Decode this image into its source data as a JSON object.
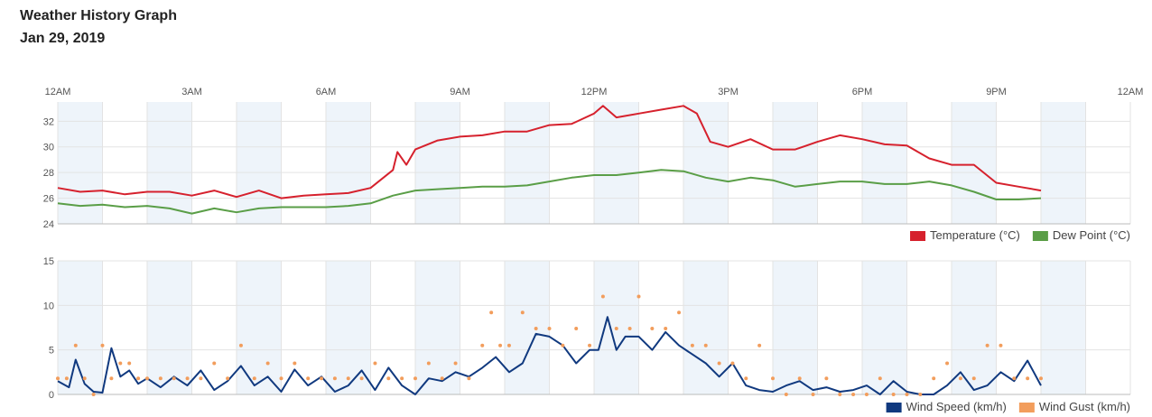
{
  "header": {
    "title": "Weather History Graph",
    "date": "Jan 29, 2019"
  },
  "colors": {
    "temperature": "#d6212d",
    "dew_point": "#5a9e47",
    "wind_speed": "#10397f",
    "wind_gust": "#f29d5c",
    "band": "#eef4fa",
    "grid": "#e3e3e3"
  },
  "chart_data": [
    {
      "type": "line",
      "x_ticks": [
        "12AM",
        "3AM",
        "6AM",
        "9AM",
        "12PM",
        "3PM",
        "6PM",
        "9PM",
        "12AM"
      ],
      "x_range_hours": [
        0,
        24
      ],
      "ylim": [
        24,
        33.5
      ],
      "y_ticks": [
        24,
        26,
        28,
        30,
        32
      ],
      "grid": true,
      "legend_position": "bottom-right",
      "series": [
        {
          "name": "Temperature (°C)",
          "key": "temperature",
          "x": [
            0,
            0.5,
            1,
            1.5,
            2,
            2.5,
            3,
            3.5,
            4,
            4.5,
            5,
            5.5,
            6,
            6.5,
            7,
            7.5,
            7.6,
            7.8,
            8,
            8.5,
            9,
            9.5,
            10,
            10.5,
            11,
            11.5,
            12,
            12.2,
            12.5,
            13,
            13.5,
            14,
            14.3,
            14.6,
            15,
            15.5,
            16,
            16.5,
            17,
            17.5,
            18,
            18.5,
            19,
            19.5,
            20,
            20.5,
            21,
            21.5,
            22
          ],
          "values": [
            26.8,
            26.5,
            26.6,
            26.3,
            26.5,
            26.5,
            26.2,
            26.6,
            26.1,
            26.6,
            26.0,
            26.2,
            26.3,
            26.4,
            26.8,
            28.2,
            29.6,
            28.6,
            29.8,
            30.5,
            30.8,
            30.9,
            31.2,
            31.2,
            31.7,
            31.8,
            32.6,
            33.2,
            32.3,
            32.6,
            32.9,
            33.2,
            32.6,
            30.4,
            30.0,
            30.6,
            29.8,
            29.8,
            30.4,
            30.9,
            30.6,
            30.2,
            30.1,
            29.1,
            28.6,
            28.6,
            27.2,
            26.9,
            26.6
          ]
        },
        {
          "name": "Dew Point (°C)",
          "key": "dew_point",
          "x": [
            0,
            0.5,
            1,
            1.5,
            2,
            2.5,
            3,
            3.5,
            4,
            4.5,
            5,
            5.5,
            6,
            6.5,
            7,
            7.5,
            8,
            8.5,
            9,
            9.5,
            10,
            10.5,
            11,
            11.5,
            12,
            12.5,
            13,
            13.5,
            14,
            14.5,
            15,
            15.5,
            16,
            16.5,
            17,
            17.5,
            18,
            18.5,
            19,
            19.5,
            20,
            20.5,
            21,
            21.5,
            22
          ],
          "values": [
            25.6,
            25.4,
            25.5,
            25.3,
            25.4,
            25.2,
            24.8,
            25.2,
            24.9,
            25.2,
            25.3,
            25.3,
            25.3,
            25.4,
            25.6,
            26.2,
            26.6,
            26.7,
            26.8,
            26.9,
            26.9,
            27.0,
            27.3,
            27.6,
            27.8,
            27.8,
            28.0,
            28.2,
            28.1,
            27.6,
            27.3,
            27.6,
            27.4,
            26.9,
            27.1,
            27.3,
            27.3,
            27.1,
            27.1,
            27.3,
            27.0,
            26.5,
            25.9,
            25.9,
            26.0
          ]
        }
      ]
    },
    {
      "type": "line",
      "x_ticks": [
        "12AM",
        "3AM",
        "6AM",
        "9AM",
        "12PM",
        "3PM",
        "6PM",
        "9PM",
        "12AM"
      ],
      "x_range_hours": [
        0,
        24
      ],
      "ylim": [
        0,
        15
      ],
      "y_ticks": [
        0,
        5,
        10,
        15
      ],
      "grid": true,
      "legend_position": "bottom-right",
      "series": [
        {
          "name": "Wind Speed (km/h)",
          "key": "wind_speed",
          "x": [
            0,
            0.25,
            0.4,
            0.6,
            0.8,
            1,
            1.2,
            1.4,
            1.6,
            1.8,
            2,
            2.3,
            2.6,
            2.9,
            3.2,
            3.5,
            3.8,
            4.1,
            4.4,
            4.7,
            5,
            5.3,
            5.6,
            5.9,
            6.2,
            6.5,
            6.8,
            7.1,
            7.4,
            7.7,
            8,
            8.3,
            8.6,
            8.9,
            9.2,
            9.5,
            9.8,
            10.1,
            10.4,
            10.7,
            11,
            11.3,
            11.6,
            11.9,
            12.1,
            12.3,
            12.5,
            12.7,
            13,
            13.3,
            13.6,
            13.9,
            14.2,
            14.5,
            14.8,
            15.1,
            15.4,
            15.7,
            16,
            16.3,
            16.6,
            16.9,
            17.2,
            17.5,
            17.8,
            18.1,
            18.4,
            18.7,
            19,
            19.3,
            19.6,
            19.9,
            20.2,
            20.5,
            20.8,
            21.1,
            21.4,
            21.7,
            22
          ],
          "values": [
            1.5,
            0.8,
            3.9,
            1.2,
            0.3,
            0.2,
            5.2,
            2.0,
            2.7,
            1.2,
            1.8,
            0.8,
            2.0,
            1.0,
            2.7,
            0.5,
            1.5,
            3.2,
            1.0,
            2.0,
            0.3,
            2.8,
            1.0,
            2.0,
            0.3,
            1.0,
            2.7,
            0.5,
            3.0,
            1.0,
            0.0,
            1.8,
            1.5,
            2.5,
            2.0,
            3.0,
            4.2,
            2.5,
            3.5,
            6.8,
            6.5,
            5.5,
            3.5,
            5.0,
            5.0,
            8.7,
            5.0,
            6.5,
            6.5,
            5.0,
            7.0,
            5.5,
            4.5,
            3.5,
            2.0,
            3.5,
            1.0,
            0.5,
            0.3,
            1.0,
            1.5,
            0.5,
            0.8,
            0.3,
            0.5,
            1.0,
            0.0,
            1.5,
            0.3,
            0.0,
            0.0,
            1.0,
            2.5,
            0.5,
            1.0,
            2.5,
            1.5,
            3.8,
            1.0
          ]
        },
        {
          "name": "Wind Gust (km/h)",
          "key": "wind_gust",
          "x": [
            0,
            0.2,
            0.4,
            0.6,
            0.8,
            1,
            1.2,
            1.4,
            1.6,
            1.8,
            2,
            2.3,
            2.6,
            2.9,
            3.2,
            3.5,
            3.8,
            4.1,
            4.4,
            4.7,
            5,
            5.3,
            5.6,
            5.9,
            6.2,
            6.5,
            6.8,
            7.1,
            7.4,
            7.7,
            8,
            8.3,
            8.6,
            8.9,
            9.2,
            9.5,
            9.7,
            9.9,
            10.1,
            10.4,
            10.7,
            11,
            11.3,
            11.6,
            11.9,
            12.2,
            12.5,
            12.8,
            13,
            13.3,
            13.6,
            13.9,
            14.2,
            14.5,
            14.8,
            15.1,
            15.4,
            15.7,
            16,
            16.3,
            16.6,
            16.9,
            17.2,
            17.5,
            17.8,
            18.1,
            18.4,
            18.7,
            19,
            19.3,
            19.6,
            19.9,
            20.2,
            20.5,
            20.8,
            21.1,
            21.4,
            21.7,
            22
          ],
          "values": [
            1.8,
            1.8,
            5.5,
            1.8,
            0.0,
            5.5,
            1.8,
            3.5,
            3.5,
            1.8,
            1.8,
            1.8,
            1.8,
            1.8,
            1.8,
            3.5,
            1.8,
            5.5,
            1.8,
            3.5,
            1.8,
            3.5,
            1.8,
            1.8,
            1.8,
            1.8,
            1.8,
            3.5,
            1.8,
            1.8,
            1.8,
            3.5,
            1.8,
            3.5,
            1.8,
            5.5,
            9.2,
            5.5,
            5.5,
            9.2,
            7.4,
            7.4,
            5.5,
            7.4,
            5.5,
            11.0,
            7.4,
            7.4,
            11.0,
            7.4,
            7.4,
            9.2,
            5.5,
            5.5,
            3.5,
            3.5,
            1.8,
            5.5,
            1.8,
            0.0,
            1.8,
            0.0,
            1.8,
            0.0,
            0.0,
            0.0,
            1.8,
            0.0,
            0.0,
            0.0,
            1.8,
            3.5,
            1.8,
            1.8,
            5.5,
            5.5,
            1.8,
            1.8,
            1.8
          ]
        }
      ]
    }
  ]
}
